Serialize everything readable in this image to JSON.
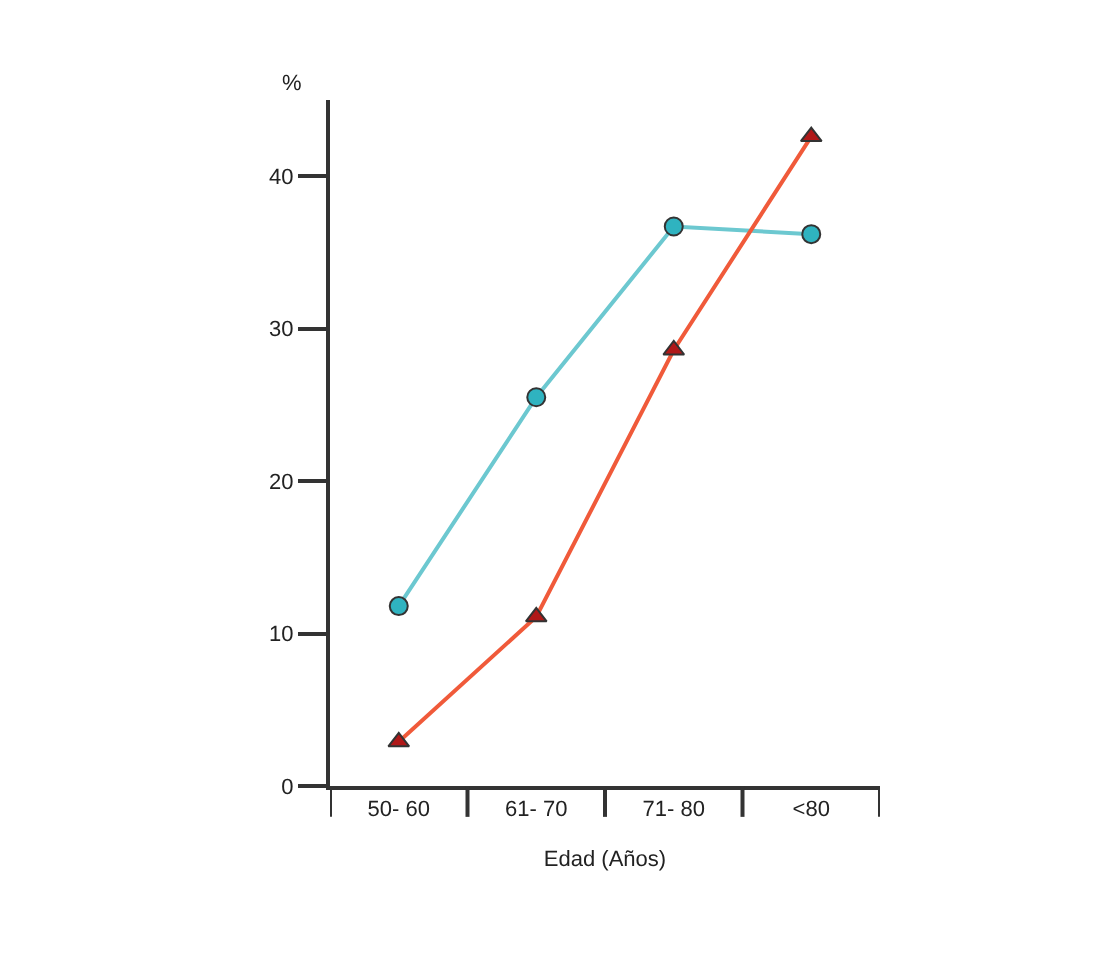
{
  "chart_data": {
    "type": "line",
    "ylabel": "%",
    "xlabel": "Edad (Años)",
    "categories": [
      "50- 60",
      "61- 70",
      "71- 80",
      "<80"
    ],
    "series": [
      {
        "color": "#6cc8d0",
        "marker": "circle",
        "values": [
          11.8,
          25.5,
          36.7,
          36.2
        ]
      },
      {
        "color": "#f05a3a",
        "marker": "triangle",
        "values": [
          2.9,
          11.1,
          28.6,
          42.6
        ]
      }
    ],
    "ylim": [
      0,
      45
    ],
    "yticks": [
      0,
      10,
      20,
      30,
      40
    ]
  }
}
